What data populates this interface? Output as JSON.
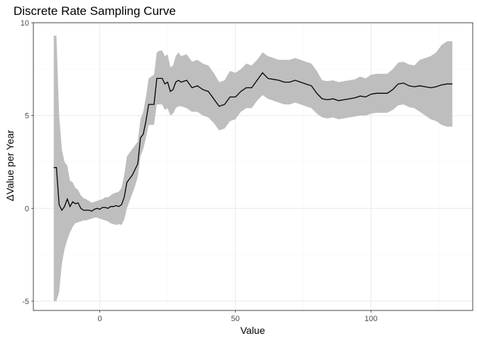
{
  "chart_data": {
    "type": "line",
    "title": "Discrete Rate Sampling Curve",
    "xlabel": "Value",
    "ylabel": "ΔValue per Year",
    "xlim": [
      -24.5,
      137.5
    ],
    "ylim": [
      -5.5,
      10
    ],
    "x_ticks": [
      0,
      50,
      100
    ],
    "x_tick_labels": [
      "0",
      "50",
      "100"
    ],
    "y_ticks": [
      -5,
      0,
      5,
      10
    ],
    "y_tick_labels": [
      "-5",
      "0",
      "5",
      "10"
    ],
    "grid": true,
    "series": [
      {
        "x": [
          -17,
          -16,
          -15,
          -14,
          -13,
          -12,
          -11,
          -10,
          -9,
          -8,
          -7,
          -6,
          -5,
          -4,
          -3,
          -2,
          -1,
          0,
          1,
          2,
          3,
          4,
          5,
          6,
          7,
          8,
          9,
          10,
          11,
          12,
          13,
          14,
          15,
          16,
          17,
          18,
          19,
          20,
          21,
          22,
          23,
          24,
          25,
          26,
          27,
          28,
          29,
          30,
          32,
          34,
          36,
          38,
          40,
          42,
          44,
          46,
          48,
          50,
          52,
          54,
          56,
          58,
          60,
          62,
          64,
          66,
          68,
          70,
          72,
          74,
          76,
          78,
          80,
          82,
          84,
          86,
          88,
          90,
          92,
          94,
          96,
          98,
          100,
          102,
          104,
          106,
          108,
          110,
          112,
          114,
          116,
          118,
          120,
          122,
          124,
          126,
          128,
          130
        ],
        "y": [
          2.2,
          2.2,
          0.2,
          -0.1,
          0.1,
          0.5,
          0.1,
          0.35,
          0.25,
          0.3,
          0.0,
          -0.1,
          -0.1,
          -0.1,
          -0.15,
          -0.05,
          0.0,
          -0.05,
          0.05,
          0.05,
          0.0,
          0.1,
          0.1,
          0.15,
          0.1,
          0.2,
          0.6,
          1.4,
          1.6,
          1.8,
          2.1,
          2.4,
          3.8,
          4.0,
          4.7,
          5.6,
          5.6,
          5.6,
          7.0,
          7.0,
          7.0,
          6.7,
          6.8,
          6.3,
          6.4,
          6.8,
          6.9,
          6.8,
          6.9,
          6.5,
          6.6,
          6.4,
          6.3,
          5.9,
          5.5,
          5.6,
          6.0,
          6.0,
          6.3,
          6.5,
          6.5,
          6.9,
          7.3,
          7.0,
          6.95,
          6.9,
          6.8,
          6.8,
          6.9,
          6.8,
          6.7,
          6.6,
          6.2,
          5.9,
          5.85,
          5.9,
          5.8,
          5.85,
          5.9,
          5.95,
          6.05,
          6.0,
          6.15,
          6.2,
          6.2,
          6.2,
          6.4,
          6.7,
          6.75,
          6.6,
          6.55,
          6.6,
          6.55,
          6.5,
          6.55,
          6.65,
          6.7,
          6.7
        ],
        "lower": [
          -5.0,
          -5.0,
          -4.5,
          -3.0,
          -2.2,
          -1.7,
          -1.3,
          -1.0,
          -0.8,
          -0.75,
          -0.7,
          -0.65,
          -0.65,
          -0.6,
          -0.55,
          -0.5,
          -0.5,
          -0.55,
          -0.6,
          -0.65,
          -0.7,
          -0.8,
          -0.85,
          -0.9,
          -0.85,
          -0.9,
          -0.6,
          0.0,
          0.4,
          0.8,
          1.2,
          1.7,
          2.8,
          3.2,
          3.8,
          4.5,
          4.5,
          4.5,
          5.6,
          5.6,
          5.6,
          5.3,
          5.4,
          5.0,
          5.1,
          5.4,
          5.5,
          5.5,
          5.4,
          5.2,
          5.2,
          5.0,
          4.9,
          4.6,
          4.2,
          4.3,
          4.7,
          4.8,
          5.2,
          5.4,
          5.4,
          5.8,
          6.1,
          5.9,
          5.8,
          5.7,
          5.6,
          5.6,
          5.7,
          5.6,
          5.5,
          5.4,
          5.1,
          4.9,
          4.85,
          4.9,
          4.8,
          4.85,
          4.9,
          4.95,
          5.0,
          5.0,
          5.1,
          5.15,
          5.15,
          5.15,
          5.3,
          5.55,
          5.6,
          5.45,
          5.4,
          5.2,
          5.0,
          4.8,
          4.7,
          4.5,
          4.4,
          4.4
        ],
        "upper": [
          9.3,
          9.3,
          5.0,
          3.2,
          2.5,
          2.3,
          1.5,
          1.4,
          1.1,
          1.0,
          0.7,
          0.55,
          0.5,
          0.4,
          0.3,
          0.35,
          0.4,
          0.45,
          0.5,
          0.6,
          0.6,
          0.7,
          0.8,
          0.85,
          0.9,
          1.1,
          1.8,
          2.8,
          3.0,
          3.2,
          3.4,
          3.6,
          4.8,
          5.2,
          6.0,
          7.0,
          7.1,
          7.2,
          8.4,
          8.5,
          8.5,
          8.2,
          8.3,
          7.6,
          7.7,
          8.2,
          8.4,
          8.2,
          8.3,
          7.9,
          8.0,
          7.8,
          7.7,
          7.3,
          6.8,
          6.9,
          7.4,
          7.3,
          7.5,
          7.8,
          7.7,
          8.0,
          8.4,
          8.2,
          8.1,
          8.0,
          8.0,
          8.0,
          8.1,
          8.0,
          7.9,
          7.8,
          7.4,
          6.9,
          6.85,
          6.9,
          6.8,
          6.85,
          6.9,
          6.95,
          7.1,
          7.0,
          7.2,
          7.25,
          7.25,
          7.25,
          7.5,
          7.85,
          7.9,
          7.75,
          7.7,
          8.0,
          8.1,
          8.2,
          8.4,
          8.8,
          9.0,
          9.0
        ]
      }
    ],
    "colors": {
      "line": "#000000",
      "ribbon": "#bebebe",
      "grid_major": "#ebebeb",
      "grid_minor": "#f5f5f5",
      "panel_border": "#333333"
    }
  }
}
